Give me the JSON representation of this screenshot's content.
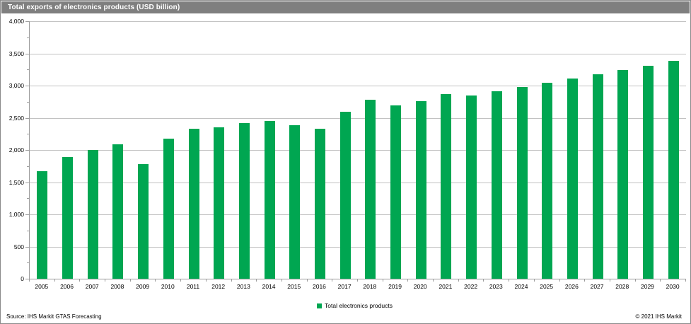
{
  "header": {
    "title": "Total exports of electronics products (USD billion)"
  },
  "colors": {
    "bar": "#00a651",
    "titlebar_bg": "#7f7f7f",
    "gridline": "#c2c2c2",
    "axis": "#9c9c9c",
    "frame_border": "#8a8a8a"
  },
  "chart_data": {
    "type": "bar",
    "title": "Total exports of electronics products (USD billion)",
    "xlabel": "",
    "ylabel": "",
    "ylim": [
      0,
      4000
    ],
    "grid": true,
    "legend_position": "bottom",
    "minor_tick_step": 250,
    "categories": [
      "2005",
      "2006",
      "2007",
      "2008",
      "2009",
      "2010",
      "2011",
      "2012",
      "2013",
      "2014",
      "2015",
      "2016",
      "2017",
      "2018",
      "2019",
      "2020",
      "2021",
      "2022",
      "2023",
      "2024",
      "2025",
      "2026",
      "2027",
      "2028",
      "2029",
      "2030"
    ],
    "series": [
      {
        "name": "Total electronics products",
        "values": [
          1670,
          1890,
          2000,
          2085,
          1780,
          2180,
          2335,
          2350,
          2415,
          2455,
          2385,
          2330,
          2590,
          2780,
          2695,
          2760,
          2865,
          2845,
          2910,
          2980,
          3040,
          3115,
          3180,
          3240,
          3310,
          3390
        ]
      }
    ],
    "yticks": [
      {
        "value": 0,
        "label": "0"
      },
      {
        "value": 500,
        "label": "500"
      },
      {
        "value": 1000,
        "label": "1,000"
      },
      {
        "value": 1500,
        "label": "1,500"
      },
      {
        "value": 2000,
        "label": "2,000"
      },
      {
        "value": 2500,
        "label": "2,500"
      },
      {
        "value": 3000,
        "label": "3,000"
      },
      {
        "value": 3500,
        "label": "3,500"
      },
      {
        "value": 4000,
        "label": "4,000"
      }
    ]
  },
  "legend": {
    "label": "Total electronics products"
  },
  "footer": {
    "source": "Source: IHS Markit GTAS Forecasting",
    "copyright": "© 2021 IHS Markit"
  }
}
